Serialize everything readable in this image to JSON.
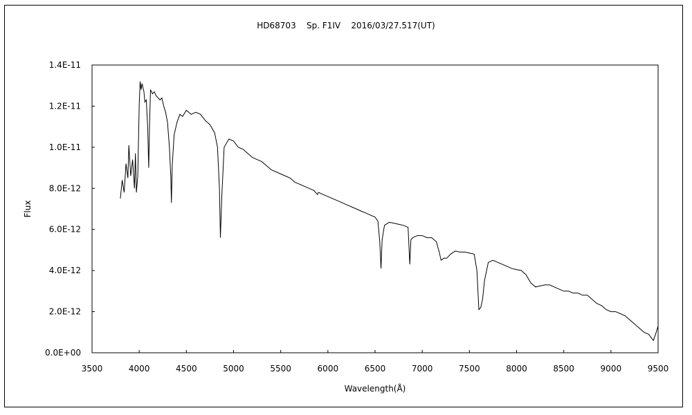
{
  "chart_data": {
    "type": "line",
    "title": "HD68703    Sp. F1IV    2016/03/27.517(UT)",
    "xlabel": "Wavelength(Å)",
    "ylabel": "Flux",
    "xlim": [
      3500,
      9500
    ],
    "ylim": [
      0,
      1.4e-11
    ],
    "xticks": [
      3500,
      4000,
      4500,
      5000,
      5500,
      6000,
      6500,
      7000,
      7500,
      8000,
      8500,
      9000,
      9500
    ],
    "xtick_labels": [
      "3500",
      "4000",
      "4500",
      "5000",
      "5500",
      "6000",
      "6500",
      "7000",
      "7500",
      "8000",
      "8500",
      "9000",
      "9500"
    ],
    "yticks": [
      0,
      2e-12,
      4e-12,
      6e-12,
      8e-12,
      1e-11,
      1.2e-11,
      1.4e-11
    ],
    "ytick_labels": [
      "0.0E+00",
      "2.0E-12",
      "4.0E-12",
      "6.0E-12",
      "8.0E-12",
      "1.0E-11",
      "1.2E-11",
      "1.4E-11"
    ],
    "grid": false,
    "line_color": "#000000",
    "series": [
      {
        "points": [
          [
            3800,
            7.5e-12
          ],
          [
            3820,
            8.4e-12
          ],
          [
            3840,
            7.8e-12
          ],
          [
            3860,
            9.2e-12
          ],
          [
            3880,
            8.5e-12
          ],
          [
            3890,
            1.01e-11
          ],
          [
            3910,
            8.6e-12
          ],
          [
            3930,
            9.4e-12
          ],
          [
            3950,
            8e-12
          ],
          [
            3960,
            9.7e-12
          ],
          [
            3970,
            7.8e-12
          ],
          [
            3985,
            8.6e-12
          ],
          [
            4000,
            1.21e-11
          ],
          [
            4010,
            1.32e-11
          ],
          [
            4020,
            1.28e-11
          ],
          [
            4030,
            1.31e-11
          ],
          [
            4050,
            1.27e-11
          ],
          [
            4060,
            1.22e-11
          ],
          [
            4075,
            1.23e-11
          ],
          [
            4090,
            1.1e-11
          ],
          [
            4101,
            9e-12
          ],
          [
            4110,
            1.12e-11
          ],
          [
            4120,
            1.28e-11
          ],
          [
            4140,
            1.26e-11
          ],
          [
            4160,
            1.27e-11
          ],
          [
            4180,
            1.25e-11
          ],
          [
            4200,
            1.24e-11
          ],
          [
            4220,
            1.23e-11
          ],
          [
            4240,
            1.24e-11
          ],
          [
            4260,
            1.2e-11
          ],
          [
            4280,
            1.17e-11
          ],
          [
            4300,
            1.12e-11
          ],
          [
            4320,
            1e-11
          ],
          [
            4335,
            8.6e-12
          ],
          [
            4341,
            7.3e-12
          ],
          [
            4350,
            9.1e-12
          ],
          [
            4370,
            1.06e-11
          ],
          [
            4400,
            1.12e-11
          ],
          [
            4430,
            1.16e-11
          ],
          [
            4460,
            1.15e-11
          ],
          [
            4500,
            1.18e-11
          ],
          [
            4550,
            1.16e-11
          ],
          [
            4600,
            1.17e-11
          ],
          [
            4650,
            1.16e-11
          ],
          [
            4700,
            1.13e-11
          ],
          [
            4750,
            1.11e-11
          ],
          [
            4800,
            1.07e-11
          ],
          [
            4830,
            1e-11
          ],
          [
            4850,
            8e-12
          ],
          [
            4861,
            5.6e-12
          ],
          [
            4875,
            7.6e-12
          ],
          [
            4900,
            1e-11
          ],
          [
            4950,
            1.04e-11
          ],
          [
            5000,
            1.03e-11
          ],
          [
            5050,
            1e-11
          ],
          [
            5100,
            9.9e-12
          ],
          [
            5150,
            9.7e-12
          ],
          [
            5200,
            9.5e-12
          ],
          [
            5250,
            9.4e-12
          ],
          [
            5300,
            9.3e-12
          ],
          [
            5350,
            9.1e-12
          ],
          [
            5400,
            8.9e-12
          ],
          [
            5450,
            8.8e-12
          ],
          [
            5500,
            8.7e-12
          ],
          [
            5550,
            8.6e-12
          ],
          [
            5600,
            8.5e-12
          ],
          [
            5650,
            8.3e-12
          ],
          [
            5700,
            8.2e-12
          ],
          [
            5750,
            8.1e-12
          ],
          [
            5800,
            8e-12
          ],
          [
            5850,
            7.9e-12
          ],
          [
            5890,
            7.7e-12
          ],
          [
            5900,
            7.8e-12
          ],
          [
            5950,
            7.7e-12
          ],
          [
            6000,
            7.6e-12
          ],
          [
            6050,
            7.5e-12
          ],
          [
            6100,
            7.4e-12
          ],
          [
            6150,
            7.3e-12
          ],
          [
            6200,
            7.2e-12
          ],
          [
            6250,
            7.1e-12
          ],
          [
            6300,
            7e-12
          ],
          [
            6350,
            6.9e-12
          ],
          [
            6400,
            6.8e-12
          ],
          [
            6450,
            6.7e-12
          ],
          [
            6500,
            6.6e-12
          ],
          [
            6530,
            6.4e-12
          ],
          [
            6550,
            5.4e-12
          ],
          [
            6563,
            4.1e-12
          ],
          [
            6575,
            5.5e-12
          ],
          [
            6600,
            6.2e-12
          ],
          [
            6650,
            6.35e-12
          ],
          [
            6700,
            6.3e-12
          ],
          [
            6750,
            6.25e-12
          ],
          [
            6800,
            6.2e-12
          ],
          [
            6850,
            6.1e-12
          ],
          [
            6868,
            4.3e-12
          ],
          [
            6880,
            5.5e-12
          ],
          [
            6900,
            5.6e-12
          ],
          [
            6950,
            5.7e-12
          ],
          [
            7000,
            5.7e-12
          ],
          [
            7050,
            5.6e-12
          ],
          [
            7100,
            5.6e-12
          ],
          [
            7150,
            5.4e-12
          ],
          [
            7180,
            4.9e-12
          ],
          [
            7200,
            4.5e-12
          ],
          [
            7230,
            4.6e-12
          ],
          [
            7260,
            4.6e-12
          ],
          [
            7300,
            4.8e-12
          ],
          [
            7350,
            4.95e-12
          ],
          [
            7400,
            4.9e-12
          ],
          [
            7450,
            4.9e-12
          ],
          [
            7500,
            4.85e-12
          ],
          [
            7550,
            4.8e-12
          ],
          [
            7580,
            4e-12
          ],
          [
            7600,
            2.1e-12
          ],
          [
            7620,
            2.2e-12
          ],
          [
            7640,
            2.6e-12
          ],
          [
            7660,
            3.5e-12
          ],
          [
            7700,
            4.4e-12
          ],
          [
            7750,
            4.5e-12
          ],
          [
            7800,
            4.4e-12
          ],
          [
            7850,
            4.3e-12
          ],
          [
            7900,
            4.2e-12
          ],
          [
            7950,
            4.1e-12
          ],
          [
            8000,
            4.05e-12
          ],
          [
            8050,
            4e-12
          ],
          [
            8100,
            3.8e-12
          ],
          [
            8150,
            3.4e-12
          ],
          [
            8200,
            3.2e-12
          ],
          [
            8250,
            3.25e-12
          ],
          [
            8300,
            3.3e-12
          ],
          [
            8350,
            3.3e-12
          ],
          [
            8400,
            3.2e-12
          ],
          [
            8450,
            3.1e-12
          ],
          [
            8500,
            3e-12
          ],
          [
            8550,
            3e-12
          ],
          [
            8600,
            2.9e-12
          ],
          [
            8650,
            2.9e-12
          ],
          [
            8700,
            2.8e-12
          ],
          [
            8750,
            2.8e-12
          ],
          [
            8800,
            2.6e-12
          ],
          [
            8850,
            2.4e-12
          ],
          [
            8900,
            2.3e-12
          ],
          [
            8950,
            2.1e-12
          ],
          [
            9000,
            2e-12
          ],
          [
            9050,
            2e-12
          ],
          [
            9100,
            1.9e-12
          ],
          [
            9150,
            1.8e-12
          ],
          [
            9200,
            1.6e-12
          ],
          [
            9250,
            1.4e-12
          ],
          [
            9300,
            1.2e-12
          ],
          [
            9350,
            1e-12
          ],
          [
            9400,
            9e-13
          ],
          [
            9450,
            6e-13
          ],
          [
            9480,
            1e-12
          ],
          [
            9500,
            1.3e-12
          ]
        ]
      }
    ]
  }
}
